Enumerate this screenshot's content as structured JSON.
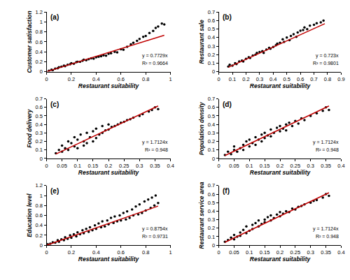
{
  "chart_data": [
    {
      "type": "scatter",
      "title": "(a)",
      "x_label": "Restaurant suitability",
      "y_label": "Customer satisfaction",
      "xlim": [
        0,
        1
      ],
      "ylim": [
        0,
        1.2
      ],
      "xticks": [
        0,
        0.2,
        0.4,
        0.6,
        0.8,
        1
      ],
      "yticks": [
        0,
        0.2,
        0.4,
        0.6,
        0.8,
        1,
        1.2
      ],
      "grid": false,
      "annotations": [
        "y = 0.7729x",
        "R² = 0.9664"
      ],
      "series": [
        {
          "type": "scatter",
          "marker": "circle",
          "color": "#000000",
          "x": [
            0.02,
            0.04,
            0.05,
            0.07,
            0.09,
            0.1,
            0.12,
            0.14,
            0.15,
            0.17,
            0.19,
            0.2,
            0.22,
            0.24,
            0.25,
            0.27,
            0.29,
            0.3,
            0.32,
            0.34,
            0.36,
            0.38,
            0.4,
            0.42,
            0.44,
            0.46,
            0.48,
            0.5,
            0.52,
            0.55,
            0.57,
            0.6,
            0.62,
            0.65,
            0.68,
            0.7,
            0.73,
            0.75,
            0.78,
            0.8,
            0.83,
            0.86,
            0.88,
            0.9,
            0.93,
            0.95
          ],
          "values": [
            0.02,
            0.04,
            0.03,
            0.06,
            0.07,
            0.09,
            0.1,
            0.12,
            0.11,
            0.14,
            0.15,
            0.17,
            0.16,
            0.19,
            0.2,
            0.2,
            0.22,
            0.24,
            0.23,
            0.25,
            0.27,
            0.26,
            0.29,
            0.3,
            0.31,
            0.33,
            0.32,
            0.36,
            0.37,
            0.4,
            0.39,
            0.45,
            0.44,
            0.5,
            0.55,
            0.58,
            0.62,
            0.66,
            0.7,
            0.72,
            0.78,
            0.82,
            0.88,
            0.91,
            0.97,
            0.95
          ]
        },
        {
          "type": "line",
          "line_style": "solid",
          "color": "#c00000",
          "x": [
            0,
            0.95
          ],
          "values": [
            0,
            0.734
          ]
        }
      ]
    },
    {
      "type": "scatter",
      "title": "(b)",
      "x_label": "Restaurant suitability",
      "y_label": "Restaurant sale",
      "xlim": [
        0,
        0.9
      ],
      "ylim": [
        0,
        0.7
      ],
      "xticks": [
        0,
        0.1,
        0.2,
        0.3,
        0.4,
        0.5,
        0.6,
        0.7,
        0.8,
        0.9
      ],
      "yticks": [
        0,
        0.1,
        0.2,
        0.3,
        0.4,
        0.5,
        0.6,
        0.7
      ],
      "grid": false,
      "annotations": [
        "y = 0.723x",
        "R² = 0.9801"
      ],
      "series": [
        {
          "type": "scatter",
          "marker": "circle",
          "color": "#000000",
          "x": [
            0.07,
            0.08,
            0.1,
            0.12,
            0.13,
            0.15,
            0.17,
            0.18,
            0.2,
            0.22,
            0.23,
            0.25,
            0.27,
            0.28,
            0.3,
            0.32,
            0.33,
            0.35,
            0.37,
            0.38,
            0.4,
            0.42,
            0.43,
            0.45,
            0.47,
            0.48,
            0.5,
            0.52,
            0.53,
            0.55,
            0.57,
            0.58,
            0.6,
            0.62,
            0.63,
            0.65,
            0.67,
            0.7,
            0.72,
            0.75,
            0.77
          ],
          "values": [
            0.06,
            0.08,
            0.07,
            0.1,
            0.09,
            0.12,
            0.13,
            0.12,
            0.15,
            0.17,
            0.16,
            0.19,
            0.2,
            0.22,
            0.23,
            0.24,
            0.22,
            0.26,
            0.28,
            0.27,
            0.29,
            0.31,
            0.33,
            0.34,
            0.38,
            0.35,
            0.4,
            0.37,
            0.42,
            0.44,
            0.41,
            0.46,
            0.48,
            0.49,
            0.52,
            0.5,
            0.54,
            0.55,
            0.57,
            0.58,
            0.6
          ]
        },
        {
          "type": "line",
          "line_style": "solid",
          "color": "#c00000",
          "x": [
            0.07,
            0.78
          ],
          "values": [
            0.0506,
            0.5639
          ]
        }
      ]
    },
    {
      "type": "scatter",
      "title": "(c)",
      "x_label": "Restaurant suitability",
      "y_label": "Food delivery",
      "xlim": [
        0,
        0.4
      ],
      "ylim": [
        0,
        0.7
      ],
      "xticks": [
        0,
        0.05,
        0.1,
        0.15,
        0.2,
        0.25,
        0.3,
        0.35,
        0.4
      ],
      "yticks": [
        0,
        0.1,
        0.2,
        0.3,
        0.4,
        0.5,
        0.6,
        0.7
      ],
      "grid": false,
      "annotations": [
        "y = 1.7124x",
        "R² = 0.948"
      ],
      "series": [
        {
          "type": "scatter",
          "marker": "circle",
          "color": "#000000",
          "x": [
            0.03,
            0.04,
            0.05,
            0.05,
            0.06,
            0.07,
            0.07,
            0.08,
            0.09,
            0.09,
            0.1,
            0.1,
            0.11,
            0.12,
            0.12,
            0.13,
            0.13,
            0.14,
            0.15,
            0.15,
            0.16,
            0.16,
            0.17,
            0.18,
            0.18,
            0.19,
            0.2,
            0.2,
            0.21,
            0.22,
            0.23,
            0.24,
            0.25,
            0.26,
            0.27,
            0.28,
            0.3,
            0.31,
            0.33,
            0.34,
            0.35,
            0.36
          ],
          "values": [
            0.06,
            0.1,
            0.08,
            0.15,
            0.12,
            0.2,
            0.1,
            0.18,
            0.14,
            0.25,
            0.22,
            0.12,
            0.28,
            0.2,
            0.15,
            0.3,
            0.18,
            0.25,
            0.32,
            0.2,
            0.35,
            0.24,
            0.28,
            0.38,
            0.3,
            0.33,
            0.4,
            0.34,
            0.37,
            0.38,
            0.4,
            0.42,
            0.43,
            0.45,
            0.46,
            0.48,
            0.5,
            0.52,
            0.55,
            0.57,
            0.6,
            0.58
          ]
        },
        {
          "type": "line",
          "line_style": "solid",
          "color": "#c00000",
          "x": [
            0.03,
            0.36
          ],
          "values": [
            0.0514,
            0.6165
          ]
        }
      ]
    },
    {
      "type": "scatter",
      "title": "(d)",
      "x_label": "Restaurant suitability",
      "y_label": "Population density",
      "xlim": [
        0,
        0.4
      ],
      "ylim": [
        0,
        0.7
      ],
      "xticks": [
        0,
        0.05,
        0.1,
        0.15,
        0.2,
        0.25,
        0.3,
        0.35,
        0.4
      ],
      "yticks": [
        0,
        0.1,
        0.2,
        0.3,
        0.4,
        0.5,
        0.6,
        0.7
      ],
      "grid": false,
      "annotations": [
        "y = 1.7124x",
        "R² = 0.948"
      ],
      "series": [
        {
          "type": "scatter",
          "marker": "circle",
          "color": "#000000",
          "x": [
            0.02,
            0.03,
            0.04,
            0.05,
            0.05,
            0.06,
            0.07,
            0.08,
            0.08,
            0.09,
            0.1,
            0.1,
            0.11,
            0.12,
            0.12,
            0.13,
            0.14,
            0.14,
            0.15,
            0.15,
            0.16,
            0.17,
            0.17,
            0.18,
            0.19,
            0.2,
            0.2,
            0.21,
            0.22,
            0.22,
            0.23,
            0.24,
            0.25,
            0.26,
            0.27,
            0.28,
            0.3,
            0.32,
            0.34,
            0.35,
            0.36
          ],
          "values": [
            0.04,
            0.08,
            0.05,
            0.1,
            0.14,
            0.08,
            0.12,
            0.16,
            0.1,
            0.2,
            0.14,
            0.22,
            0.18,
            0.25,
            0.16,
            0.22,
            0.28,
            0.2,
            0.3,
            0.24,
            0.27,
            0.34,
            0.26,
            0.3,
            0.36,
            0.32,
            0.38,
            0.35,
            0.4,
            0.33,
            0.42,
            0.38,
            0.44,
            0.41,
            0.47,
            0.45,
            0.5,
            0.53,
            0.56,
            0.6,
            0.57
          ]
        },
        {
          "type": "line",
          "line_style": "solid",
          "color": "#c00000",
          "x": [
            0.02,
            0.36
          ],
          "values": [
            0.0342,
            0.6165
          ]
        }
      ]
    },
    {
      "type": "scatter",
      "title": "(e)",
      "x_label": "Restaurant suitability",
      "y_label": "Education level",
      "xlim": [
        0,
        1
      ],
      "ylim": [
        0,
        1.2
      ],
      "xticks": [
        0,
        0.2,
        0.4,
        0.6,
        0.8,
        1
      ],
      "yticks": [
        0,
        0.2,
        0.4,
        0.6,
        0.8,
        1,
        1.2
      ],
      "grid": false,
      "annotations": [
        "y = 0.8754x",
        "R² = 0.9731"
      ],
      "series": [
        {
          "type": "scatter",
          "marker": "circle",
          "color": "#000000",
          "x": [
            0.01,
            0.03,
            0.05,
            0.07,
            0.09,
            0.1,
            0.12,
            0.14,
            0.15,
            0.17,
            0.19,
            0.2,
            0.22,
            0.24,
            0.25,
            0.27,
            0.29,
            0.3,
            0.32,
            0.34,
            0.35,
            0.37,
            0.39,
            0.4,
            0.42,
            0.44,
            0.45,
            0.47,
            0.49,
            0.5,
            0.52,
            0.54,
            0.55,
            0.57,
            0.59,
            0.6,
            0.62,
            0.64,
            0.65,
            0.67,
            0.69,
            0.7,
            0.72,
            0.74,
            0.75,
            0.77,
            0.79,
            0.8,
            0.82,
            0.84,
            0.85,
            0.87,
            0.88,
            0.9
          ],
          "values": [
            0.02,
            0.03,
            0.06,
            0.05,
            0.1,
            0.07,
            0.12,
            0.1,
            0.16,
            0.13,
            0.2,
            0.15,
            0.22,
            0.18,
            0.26,
            0.22,
            0.3,
            0.24,
            0.33,
            0.27,
            0.36,
            0.3,
            0.4,
            0.33,
            0.44,
            0.36,
            0.48,
            0.38,
            0.5,
            0.42,
            0.55,
            0.45,
            0.58,
            0.48,
            0.6,
            0.5,
            0.65,
            0.52,
            0.68,
            0.55,
            0.72,
            0.6,
            0.78,
            0.62,
            0.82,
            0.65,
            0.88,
            0.7,
            0.92,
            0.75,
            0.96,
            0.8,
            1.0,
            0.85
          ]
        },
        {
          "type": "line",
          "line_style": "solid",
          "color": "#c00000",
          "x": [
            0,
            0.9
          ],
          "values": [
            0,
            0.7879
          ]
        }
      ]
    },
    {
      "type": "scatter",
      "title": "(f)",
      "x_label": "Restaurant suitability",
      "y_label": "Restaurant service area",
      "xlim": [
        0,
        0.4
      ],
      "ylim": [
        0,
        0.7
      ],
      "xticks": [
        0,
        0.05,
        0.1,
        0.15,
        0.2,
        0.25,
        0.3,
        0.35,
        0.4
      ],
      "yticks": [
        0,
        0.1,
        0.2,
        0.3,
        0.4,
        0.5,
        0.6,
        0.7
      ],
      "grid": false,
      "annotations": [
        "y = 1.7124x",
        "R² = 0.948"
      ],
      "series": [
        {
          "type": "scatter",
          "marker": "circle",
          "color": "#000000",
          "x": [
            0.02,
            0.03,
            0.04,
            0.05,
            0.05,
            0.06,
            0.07,
            0.07,
            0.08,
            0.09,
            0.09,
            0.1,
            0.11,
            0.11,
            0.12,
            0.13,
            0.13,
            0.14,
            0.15,
            0.15,
            0.16,
            0.17,
            0.17,
            0.18,
            0.19,
            0.2,
            0.2,
            0.21,
            0.22,
            0.23,
            0.24,
            0.25,
            0.26,
            0.27,
            0.28,
            0.3,
            0.31,
            0.32,
            0.34,
            0.35,
            0.36
          ],
          "values": [
            0.04,
            0.06,
            0.09,
            0.07,
            0.12,
            0.1,
            0.15,
            0.11,
            0.18,
            0.14,
            0.22,
            0.17,
            0.24,
            0.19,
            0.26,
            0.22,
            0.29,
            0.25,
            0.3,
            0.27,
            0.33,
            0.29,
            0.35,
            0.32,
            0.36,
            0.34,
            0.39,
            0.37,
            0.4,
            0.39,
            0.43,
            0.42,
            0.45,
            0.46,
            0.48,
            0.5,
            0.52,
            0.53,
            0.56,
            0.6,
            0.58
          ]
        },
        {
          "type": "line",
          "line_style": "solid",
          "color": "#c00000",
          "x": [
            0.02,
            0.36
          ],
          "values": [
            0.0342,
            0.6165
          ]
        }
      ]
    }
  ]
}
